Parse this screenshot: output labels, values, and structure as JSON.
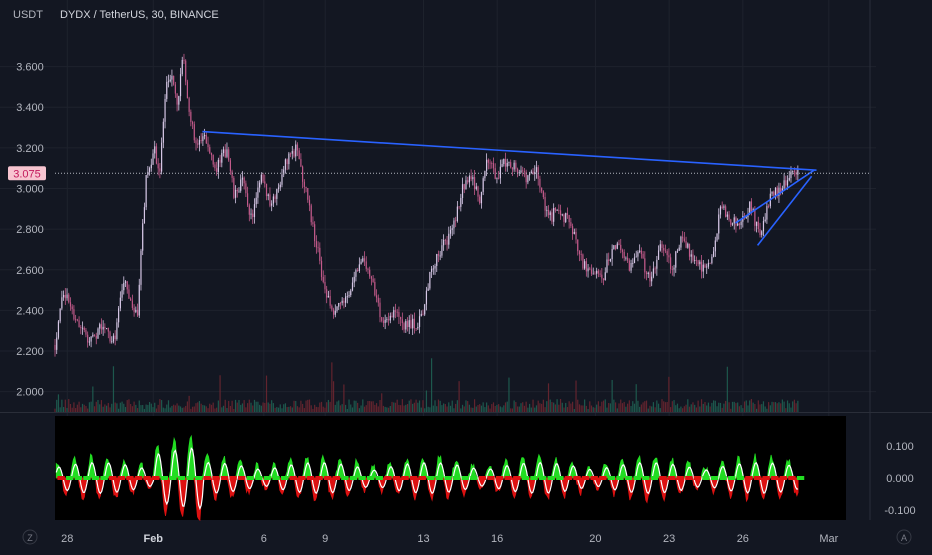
{
  "header": {
    "currency_label": "USDT",
    "symbol_title": "DYDX / TetherUS, 30, BINANCE"
  },
  "colors": {
    "background": "#131722",
    "grid": "#1e222d",
    "axis_text": "#b2b5be",
    "candle_up": "#d6c7e6",
    "candle_down": "#c25a8a",
    "trendline": "#2962ff",
    "price_label_bg": "#f7c4d0",
    "price_label_text": "#c2185b",
    "volume_up": "#1f5f52",
    "volume_down": "#6b2630",
    "osc_background": "#000000",
    "osc_green": "#22dd22",
    "osc_red": "#dd1111",
    "osc_white": "#ffffff"
  },
  "chart_data": [
    {
      "type": "candlestick",
      "title": "DYDX / TetherUS, 30, BINANCE",
      "ylabel": "USDT",
      "ylim": [
        1.9,
        3.78
      ],
      "y_ticks": [
        "3.600",
        "3.400",
        "3.200",
        "3.000",
        "2.800",
        "2.600",
        "2.400",
        "2.200",
        "2.000"
      ],
      "y_tick_values": [
        3.6,
        3.4,
        3.2,
        3.0,
        2.8,
        2.6,
        2.4,
        2.2,
        2.0
      ],
      "x_ticks": [
        "28",
        "Feb",
        "6",
        "9",
        "13",
        "16",
        "20",
        "23",
        "26",
        "Mar"
      ],
      "x_tick_days": [
        -3.5,
        0,
        4.5,
        7,
        11,
        14,
        18,
        21,
        24,
        27.5
      ],
      "xlim_days": [
        -4,
        28.2
      ],
      "last_price": 3.075,
      "last_price_label": "3.075",
      "price_path_days": [
        -4,
        -3.7,
        -3.1,
        -2.6,
        -2.1,
        -1.6,
        -1.2,
        -0.9,
        -0.65,
        -0.3,
        0.05,
        0.25,
        0.5,
        0.75,
        1.0,
        1.2,
        1.5,
        1.8,
        2.1,
        2.6,
        3.0,
        3.3,
        3.6,
        4.0,
        4.4,
        4.8,
        5.3,
        5.8,
        6.2,
        6.6,
        7.0,
        7.3,
        7.7,
        8.0,
        8.4,
        8.8,
        9.3,
        9.8,
        10.3,
        10.9,
        11.3,
        11.7,
        12.2,
        12.6,
        13.0,
        13.3,
        13.6,
        14.0,
        14.4,
        14.8,
        15.2,
        15.6,
        16.1,
        16.5,
        17.0,
        17.5,
        17.9,
        18.3,
        18.6,
        19.0,
        19.4,
        19.8,
        20.2,
        20.7,
        21.1,
        21.5,
        21.9,
        22.3,
        22.7,
        23.1,
        23.5,
        23.9,
        24.3,
        24.7,
        25.1,
        25.5,
        25.9,
        26.3
      ],
      "price_path_values": [
        2.23,
        2.5,
        2.35,
        2.25,
        2.32,
        2.25,
        2.55,
        2.42,
        2.38,
        3.05,
        3.2,
        3.05,
        3.5,
        3.55,
        3.4,
        3.65,
        3.35,
        3.2,
        3.25,
        3.1,
        3.2,
        2.95,
        3.05,
        2.85,
        3.05,
        2.9,
        3.1,
        3.2,
        3.0,
        2.75,
        2.5,
        2.4,
        2.45,
        2.5,
        2.65,
        2.6,
        2.35,
        2.4,
        2.32,
        2.35,
        2.6,
        2.7,
        2.8,
        3.0,
        3.05,
        2.95,
        3.15,
        3.05,
        3.15,
        3.1,
        3.05,
        3.08,
        2.85,
        2.9,
        2.82,
        2.62,
        2.58,
        2.55,
        2.68,
        2.72,
        2.62,
        2.68,
        2.55,
        2.72,
        2.6,
        2.75,
        2.68,
        2.62,
        2.62,
        2.9,
        2.85,
        2.82,
        2.92,
        2.75,
        2.95,
        3.0,
        3.05,
        3.1
      ],
      "trendlines": [
        {
          "start": [
            2.0,
            3.28
          ],
          "end": [
            27.0,
            3.09
          ]
        },
        {
          "start": [
            23.7,
            2.83
          ],
          "end": [
            26.9,
            3.09
          ]
        },
        {
          "start": [
            24.6,
            2.72
          ],
          "end": [
            26.8,
            3.06
          ]
        }
      ]
    },
    {
      "type": "area",
      "title": "",
      "y_ticks": [
        "0.100",
        "0.000",
        "-0.100"
      ],
      "y_tick_values": [
        0.1,
        0.0,
        -0.1
      ],
      "ylim": [
        -0.2,
        0.2
      ]
    }
  ]
}
